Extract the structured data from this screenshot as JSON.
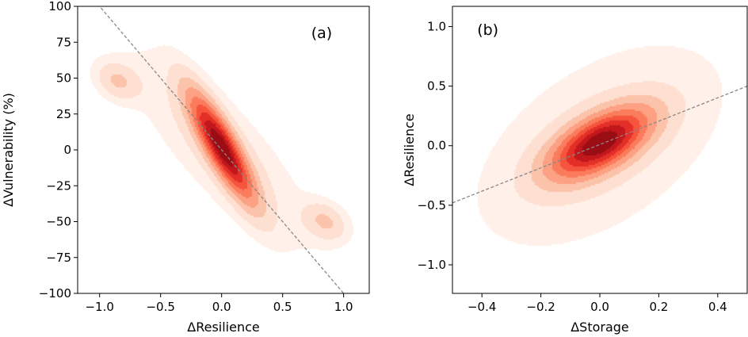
{
  "chart_data": [
    {
      "type": "heatmap",
      "kind": "kde-contour",
      "panel_label": "(a)",
      "xlabel": "ΔResilience",
      "ylabel": "ΔVulnerability (%)",
      "xlim": [
        -1.18,
        1.21
      ],
      "ylim": [
        -100,
        100
      ],
      "xticks": [
        -1.0,
        -0.5,
        0.0,
        0.5,
        1.0
      ],
      "xtick_labels": [
        "−1.0",
        "−0.5",
        "0.0",
        "0.5",
        "1.0"
      ],
      "yticks": [
        100,
        75,
        50,
        25,
        0,
        -25,
        -50,
        -75,
        -100
      ],
      "ytick_labels": [
        "100",
        "75",
        "50",
        "25",
        "0",
        "−25",
        "−50",
        "−75",
        "−100"
      ],
      "fit_line": {
        "x": [
          -1.18,
          1.21
        ],
        "slope": -100,
        "intercept": 0,
        "style": "dashed",
        "color": "#888888"
      },
      "density_components": [
        {
          "mean": [
            0.0,
            2
          ],
          "sd": [
            0.17,
            24
          ],
          "corr": -0.85,
          "weight": 0.55
        },
        {
          "mean": [
            0.0,
            0
          ],
          "sd": [
            0.45,
            42
          ],
          "corr": -0.82,
          "weight": 0.35
        },
        {
          "mean": [
            -0.85,
            48
          ],
          "sd": [
            0.12,
            9
          ],
          "corr": -0.3,
          "weight": 0.05
        },
        {
          "mean": [
            0.85,
            -50
          ],
          "sd": [
            0.12,
            9
          ],
          "corr": -0.3,
          "weight": 0.05
        }
      ],
      "levels": 9,
      "grid": false
    },
    {
      "type": "heatmap",
      "kind": "kde-contour",
      "panel_label": "(b)",
      "xlabel": "ΔStorage",
      "ylabel": "ΔResilience",
      "xlim": [
        -0.5,
        0.5
      ],
      "ylim": [
        -1.24,
        1.17
      ],
      "xticks": [
        -0.4,
        -0.2,
        0.0,
        0.2,
        0.4
      ],
      "xtick_labels": [
        "−0.4",
        "−0.2",
        "0.0",
        "0.2",
        "0.4"
      ],
      "yticks": [
        1.0,
        0.5,
        0.0,
        -0.5,
        -1.0
      ],
      "ytick_labels": [
        "1.0",
        "0.5",
        "0.0",
        "−0.5",
        "−1.0"
      ],
      "fit_line": {
        "x": [
          -0.5,
          0.5
        ],
        "slope": 0.98,
        "intercept": 0.01,
        "style": "dashed",
        "color": "#888888"
      },
      "density_components": [
        {
          "mean": [
            0.0,
            0.02
          ],
          "sd": [
            0.11,
            0.19
          ],
          "corr": 0.6,
          "weight": 0.55
        },
        {
          "mean": [
            0.0,
            0.0
          ],
          "sd": [
            0.27,
            0.55
          ],
          "corr": 0.5,
          "weight": 0.45
        }
      ],
      "levels": 9,
      "grid": false
    }
  ],
  "colors": [
    "#fff0e9",
    "#fee0d2",
    "#fcc3ab",
    "#fca183",
    "#fb7c5c",
    "#f5553d",
    "#e32f27",
    "#c2171c",
    "#9b0d14"
  ]
}
